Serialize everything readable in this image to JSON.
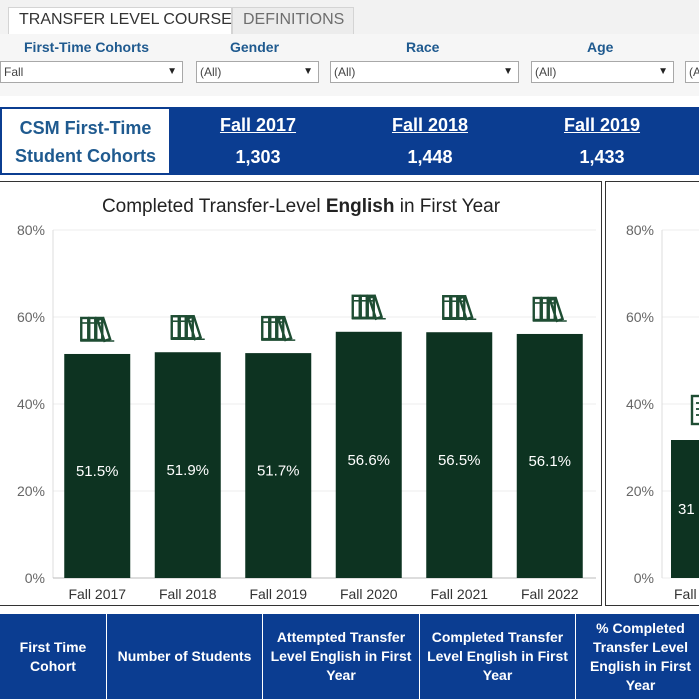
{
  "tabs": [
    {
      "label": "TRANSFER LEVEL COURSE",
      "active": true
    },
    {
      "label": "DEFINITIONS",
      "active": false
    }
  ],
  "filters": [
    {
      "label": "First-Time Cohorts",
      "value": "Fall"
    },
    {
      "label": "Gender",
      "value": "(All)"
    },
    {
      "label": "Race",
      "value": "(All)"
    },
    {
      "label": "Age",
      "value": "(All)"
    },
    {
      "label": "",
      "value": "(A"
    }
  ],
  "cohort_header": {
    "title_line1": "CSM First-Time",
    "title_line2": "Student Cohorts",
    "columns": [
      {
        "year": "Fall 2017",
        "count": "1,303"
      },
      {
        "year": "Fall 2018",
        "count": "1,448"
      },
      {
        "year": "Fall 2019",
        "count": "1,433"
      }
    ]
  },
  "chart1": {
    "title_pre": "Completed Transfer-Level ",
    "title_bold": "English",
    "title_post": " in First Year"
  },
  "chart2": {
    "partial_label": "31",
    "partial_category": "Fall"
  },
  "colors": {
    "bar": "#0d3321",
    "header_blue": "#0b3d91",
    "label_blue": "#1f5a8f",
    "icon": "#1e4d33"
  },
  "chart_data": [
    {
      "type": "bar",
      "title": "Completed Transfer-Level English in First Year",
      "categories": [
        "Fall 2017",
        "Fall 2018",
        "Fall 2019",
        "Fall 2020",
        "Fall 2021",
        "Fall 2022"
      ],
      "values": [
        51.5,
        51.9,
        51.7,
        56.6,
        56.5,
        56.1
      ],
      "data_labels": [
        "51.5%",
        "51.9%",
        "51.7%",
        "56.6%",
        "56.5%",
        "56.1%"
      ],
      "y_ticks": [
        "0%",
        "20%",
        "40%",
        "60%",
        "80%"
      ],
      "ylim": [
        0,
        80
      ],
      "grid": true,
      "icon": "books-icon"
    }
  ],
  "table_header": [
    "First Time Cohort",
    "Number of Students",
    "Attempted Transfer Level English in First Year",
    "Completed Transfer Level English in First Year",
    "% Completed Transfer Level English in First Year"
  ]
}
